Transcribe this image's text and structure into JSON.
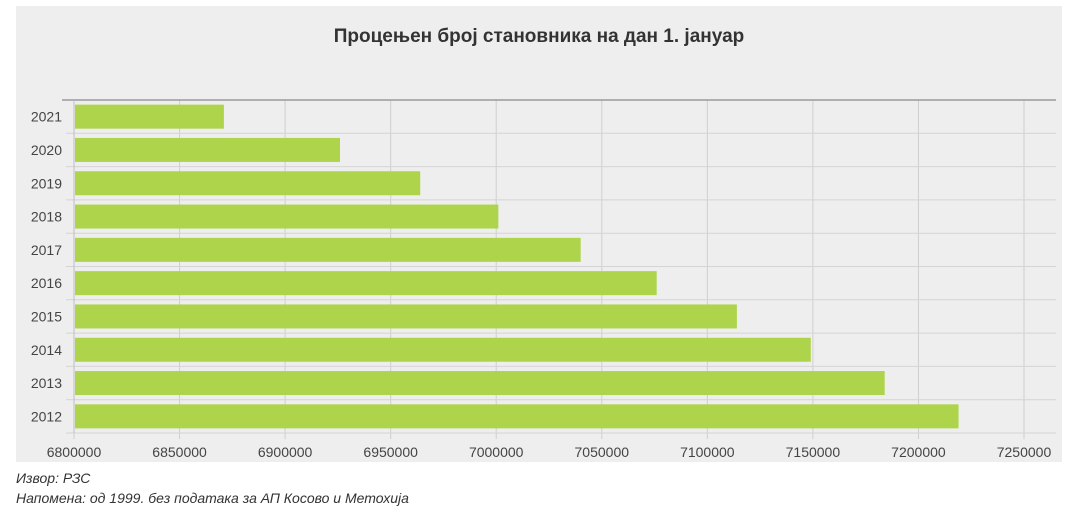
{
  "chart_data": {
    "type": "bar",
    "orientation": "horizontal",
    "title": "Процењен број становника на дан 1. јануар",
    "categories": [
      "2021",
      "2020",
      "2019",
      "2018",
      "2017",
      "2016",
      "2015",
      "2014",
      "2013",
      "2012"
    ],
    "values": [
      6871000,
      6926000,
      6964000,
      7001000,
      7040000,
      7076000,
      7114000,
      7149000,
      7184000,
      7219000
    ],
    "xlim": [
      6800000,
      7250000
    ],
    "xticks": [
      6800000,
      6850000,
      6900000,
      6950000,
      7000000,
      7050000,
      7100000,
      7150000,
      7200000,
      7250000
    ],
    "xtick_labels": [
      "6800000",
      "6850000",
      "6900000",
      "6950000",
      "7000000",
      "7050000",
      "7100000",
      "7150000",
      "7200000",
      "7250000"
    ],
    "grid": true,
    "bar_color": "#add44a"
  },
  "footer": {
    "source": "Извор: РЗС",
    "note": "Напомена: од 1999. без података за АП Косово и Метохија"
  }
}
